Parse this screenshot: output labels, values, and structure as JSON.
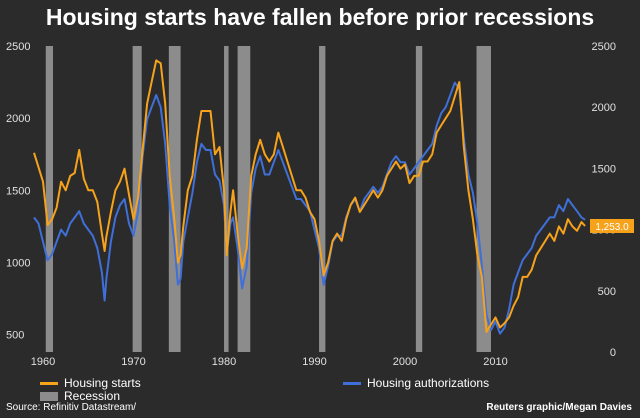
{
  "title": "Housing starts have fallen before prior recessions",
  "legend": {
    "starts": "Housing starts",
    "recession": "Recession",
    "authorizations": "Housing authorizations"
  },
  "source": "Source: Refinitiv Datastream/",
  "credit": "Reuters graphic/Megan Davies",
  "colors": {
    "background": "#2b2b2b",
    "starts": "#f7a21b",
    "authorizations": "#3f6fd8",
    "recession": "#8c8c8c",
    "text": "#ffffff",
    "axis": "#e0e0e0"
  },
  "chart_data": {
    "type": "line",
    "title": "Housing starts have fallen before prior recessions",
    "x_range": [
      1959,
      2020
    ],
    "x_ticks": [
      1960,
      1970,
      1980,
      1990,
      2000,
      2010
    ],
    "y_left": {
      "range": [
        380,
        2500
      ],
      "ticks": [
        500,
        1000,
        1500,
        2000,
        2500
      ]
    },
    "y_right": {
      "range": [
        0,
        2500
      ],
      "ticks": [
        0,
        500,
        1000,
        1500,
        2000,
        2500
      ]
    },
    "recessions": [
      [
        1960.3,
        1961.1
      ],
      [
        1969.9,
        1970.9
      ],
      [
        1973.9,
        1975.2
      ],
      [
        1980.0,
        1980.5
      ],
      [
        1981.5,
        1982.9
      ],
      [
        1990.5,
        1991.2
      ],
      [
        2001.2,
        2001.9
      ],
      [
        2007.9,
        2009.5
      ]
    ],
    "last_value_label": "1,253.0",
    "series": [
      {
        "name": "Housing starts",
        "axis": "left",
        "points": [
          [
            1959.0,
            1760
          ],
          [
            1959.5,
            1660
          ],
          [
            1960.0,
            1560
          ],
          [
            1960.5,
            1260
          ],
          [
            1961.0,
            1300
          ],
          [
            1961.5,
            1380
          ],
          [
            1962.0,
            1560
          ],
          [
            1962.5,
            1500
          ],
          [
            1963.0,
            1600
          ],
          [
            1963.5,
            1620
          ],
          [
            1964.0,
            1780
          ],
          [
            1964.5,
            1580
          ],
          [
            1965.0,
            1500
          ],
          [
            1965.5,
            1500
          ],
          [
            1966.0,
            1420
          ],
          [
            1966.5,
            1200
          ],
          [
            1966.8,
            1080
          ],
          [
            1967.0,
            1180
          ],
          [
            1967.5,
            1350
          ],
          [
            1968.0,
            1500
          ],
          [
            1968.5,
            1560
          ],
          [
            1969.0,
            1650
          ],
          [
            1969.5,
            1470
          ],
          [
            1970.0,
            1300
          ],
          [
            1970.5,
            1450
          ],
          [
            1971.0,
            1780
          ],
          [
            1971.5,
            2100
          ],
          [
            1972.0,
            2250
          ],
          [
            1972.5,
            2400
          ],
          [
            1973.0,
            2380
          ],
          [
            1973.5,
            2100
          ],
          [
            1974.0,
            1600
          ],
          [
            1974.5,
            1300
          ],
          [
            1974.9,
            1000
          ],
          [
            1975.2,
            1050
          ],
          [
            1975.5,
            1250
          ],
          [
            1976.0,
            1500
          ],
          [
            1976.5,
            1600
          ],
          [
            1977.0,
            1850
          ],
          [
            1977.5,
            2050
          ],
          [
            1978.0,
            2050
          ],
          [
            1978.5,
            2050
          ],
          [
            1979.0,
            1750
          ],
          [
            1979.5,
            1800
          ],
          [
            1980.0,
            1500
          ],
          [
            1980.3,
            1050
          ],
          [
            1980.7,
            1350
          ],
          [
            1981.0,
            1500
          ],
          [
            1981.5,
            1200
          ],
          [
            1982.0,
            960
          ],
          [
            1982.5,
            1100
          ],
          [
            1983.0,
            1600
          ],
          [
            1983.5,
            1750
          ],
          [
            1984.0,
            1850
          ],
          [
            1984.5,
            1750
          ],
          [
            1985.0,
            1700
          ],
          [
            1985.5,
            1750
          ],
          [
            1986.0,
            1900
          ],
          [
            1986.5,
            1800
          ],
          [
            1987.0,
            1700
          ],
          [
            1987.5,
            1600
          ],
          [
            1988.0,
            1500
          ],
          [
            1988.5,
            1500
          ],
          [
            1989.0,
            1450
          ],
          [
            1989.5,
            1350
          ],
          [
            1990.0,
            1300
          ],
          [
            1990.5,
            1150
          ],
          [
            1991.0,
            910
          ],
          [
            1991.5,
            1000
          ],
          [
            1992.0,
            1150
          ],
          [
            1992.5,
            1200
          ],
          [
            1993.0,
            1150
          ],
          [
            1993.5,
            1300
          ],
          [
            1994.0,
            1400
          ],
          [
            1994.5,
            1450
          ],
          [
            1995.0,
            1350
          ],
          [
            1995.5,
            1400
          ],
          [
            1996.0,
            1450
          ],
          [
            1996.5,
            1500
          ],
          [
            1997.0,
            1450
          ],
          [
            1997.5,
            1500
          ],
          [
            1998.0,
            1600
          ],
          [
            1998.5,
            1650
          ],
          [
            1999.0,
            1700
          ],
          [
            1999.5,
            1650
          ],
          [
            2000.0,
            1680
          ],
          [
            2000.5,
            1550
          ],
          [
            2001.0,
            1600
          ],
          [
            2001.5,
            1600
          ],
          [
            2002.0,
            1700
          ],
          [
            2002.5,
            1700
          ],
          [
            2003.0,
            1750
          ],
          [
            2003.5,
            1900
          ],
          [
            2004.0,
            1950
          ],
          [
            2004.5,
            2000
          ],
          [
            2005.0,
            2050
          ],
          [
            2005.5,
            2150
          ],
          [
            2006.0,
            2250
          ],
          [
            2006.5,
            1800
          ],
          [
            2007.0,
            1500
          ],
          [
            2007.5,
            1300
          ],
          [
            2008.0,
            1050
          ],
          [
            2008.5,
            900
          ],
          [
            2009.0,
            520
          ],
          [
            2009.5,
            570
          ],
          [
            2010.0,
            620
          ],
          [
            2010.5,
            550
          ],
          [
            2011.0,
            580
          ],
          [
            2011.5,
            620
          ],
          [
            2012.0,
            700
          ],
          [
            2012.5,
            760
          ],
          [
            2013.0,
            900
          ],
          [
            2013.5,
            900
          ],
          [
            2014.0,
            950
          ],
          [
            2014.5,
            1050
          ],
          [
            2015.0,
            1100
          ],
          [
            2015.5,
            1150
          ],
          [
            2016.0,
            1200
          ],
          [
            2016.5,
            1150
          ],
          [
            2017.0,
            1250
          ],
          [
            2017.5,
            1200
          ],
          [
            2018.0,
            1300
          ],
          [
            2018.5,
            1250
          ],
          [
            2019.0,
            1220
          ],
          [
            2019.5,
            1280
          ],
          [
            2019.9,
            1253
          ]
        ]
      },
      {
        "name": "Housing authorizations",
        "axis": "right",
        "points": [
          [
            1959.0,
            1100
          ],
          [
            1959.5,
            1050
          ],
          [
            1960.0,
            900
          ],
          [
            1960.5,
            750
          ],
          [
            1961.0,
            800
          ],
          [
            1961.5,
            900
          ],
          [
            1962.0,
            1000
          ],
          [
            1962.5,
            950
          ],
          [
            1963.0,
            1050
          ],
          [
            1963.5,
            1100
          ],
          [
            1964.0,
            1150
          ],
          [
            1964.5,
            1050
          ],
          [
            1965.0,
            1000
          ],
          [
            1965.5,
            950
          ],
          [
            1966.0,
            850
          ],
          [
            1966.5,
            650
          ],
          [
            1966.8,
            420
          ],
          [
            1967.0,
            600
          ],
          [
            1967.5,
            900
          ],
          [
            1968.0,
            1100
          ],
          [
            1968.5,
            1200
          ],
          [
            1969.0,
            1250
          ],
          [
            1969.5,
            1050
          ],
          [
            1970.0,
            950
          ],
          [
            1970.5,
            1150
          ],
          [
            1971.0,
            1600
          ],
          [
            1971.5,
            1900
          ],
          [
            1972.0,
            2000
          ],
          [
            1972.5,
            2100
          ],
          [
            1973.0,
            2000
          ],
          [
            1973.5,
            1700
          ],
          [
            1974.0,
            1200
          ],
          [
            1974.5,
            900
          ],
          [
            1974.9,
            550
          ],
          [
            1975.2,
            600
          ],
          [
            1975.5,
            900
          ],
          [
            1976.0,
            1100
          ],
          [
            1976.5,
            1300
          ],
          [
            1977.0,
            1550
          ],
          [
            1977.5,
            1700
          ],
          [
            1978.0,
            1650
          ],
          [
            1978.5,
            1650
          ],
          [
            1979.0,
            1450
          ],
          [
            1979.5,
            1400
          ],
          [
            1980.0,
            1200
          ],
          [
            1980.3,
            800
          ],
          [
            1980.7,
            1050
          ],
          [
            1981.0,
            1100
          ],
          [
            1981.5,
            850
          ],
          [
            1982.0,
            520
          ],
          [
            1982.5,
            700
          ],
          [
            1983.0,
            1300
          ],
          [
            1983.5,
            1500
          ],
          [
            1984.0,
            1600
          ],
          [
            1984.5,
            1450
          ],
          [
            1985.0,
            1450
          ],
          [
            1985.5,
            1550
          ],
          [
            1986.0,
            1650
          ],
          [
            1986.5,
            1550
          ],
          [
            1987.0,
            1450
          ],
          [
            1987.5,
            1350
          ],
          [
            1988.0,
            1250
          ],
          [
            1988.5,
            1250
          ],
          [
            1989.0,
            1200
          ],
          [
            1989.5,
            1150
          ],
          [
            1990.0,
            1000
          ],
          [
            1990.5,
            850
          ],
          [
            1991.0,
            550
          ],
          [
            1991.5,
            700
          ],
          [
            1992.0,
            900
          ],
          [
            1992.5,
            950
          ],
          [
            1993.0,
            950
          ],
          [
            1993.5,
            1100
          ],
          [
            1994.0,
            1200
          ],
          [
            1994.5,
            1250
          ],
          [
            1995.0,
            1150
          ],
          [
            1995.5,
            1250
          ],
          [
            1996.0,
            1300
          ],
          [
            1996.5,
            1350
          ],
          [
            1997.0,
            1300
          ],
          [
            1997.5,
            1350
          ],
          [
            1998.0,
            1450
          ],
          [
            1998.5,
            1550
          ],
          [
            1999.0,
            1600
          ],
          [
            1999.5,
            1550
          ],
          [
            2000.0,
            1550
          ],
          [
            2000.5,
            1450
          ],
          [
            2001.0,
            1500
          ],
          [
            2001.5,
            1550
          ],
          [
            2002.0,
            1600
          ],
          [
            2002.5,
            1650
          ],
          [
            2003.0,
            1700
          ],
          [
            2003.5,
            1850
          ],
          [
            2004.0,
            1950
          ],
          [
            2004.5,
            2000
          ],
          [
            2005.0,
            2100
          ],
          [
            2005.5,
            2200
          ],
          [
            2006.0,
            2150
          ],
          [
            2006.5,
            1750
          ],
          [
            2007.0,
            1450
          ],
          [
            2007.5,
            1300
          ],
          [
            2008.0,
            1050
          ],
          [
            2008.5,
            700
          ],
          [
            2009.0,
            300
          ],
          [
            2009.5,
            180
          ],
          [
            2010.0,
            250
          ],
          [
            2010.5,
            150
          ],
          [
            2011.0,
            200
          ],
          [
            2011.5,
            350
          ],
          [
            2012.0,
            550
          ],
          [
            2012.5,
            650
          ],
          [
            2013.0,
            750
          ],
          [
            2013.5,
            800
          ],
          [
            2014.0,
            850
          ],
          [
            2014.5,
            950
          ],
          [
            2015.0,
            1000
          ],
          [
            2015.5,
            1050
          ],
          [
            2016.0,
            1100
          ],
          [
            2016.5,
            1100
          ],
          [
            2017.0,
            1200
          ],
          [
            2017.5,
            1150
          ],
          [
            2018.0,
            1250
          ],
          [
            2018.5,
            1200
          ],
          [
            2019.0,
            1150
          ],
          [
            2019.5,
            1100
          ],
          [
            2019.9,
            1080
          ]
        ]
      }
    ]
  }
}
